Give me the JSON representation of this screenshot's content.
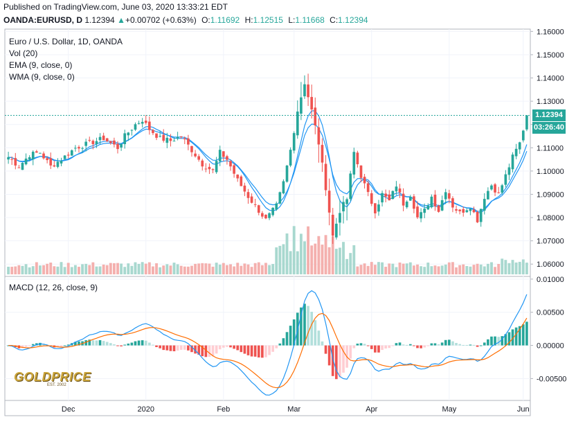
{
  "header": {
    "published": "Published on TradingView.com, June 03, 2020 13:33:21 EDT",
    "symbol": "OANDA:EURUSD, D",
    "last": "1.12394",
    "change_arrow": "▲",
    "change": "+0.00702 (+0.63%)",
    "open_label": "O:",
    "open": "1.11692",
    "high_label": "H:",
    "high": "1.12515",
    "low_label": "L:",
    "low": "1.11668",
    "close_label": "C:",
    "close": "1.12394"
  },
  "legend": {
    "title": "Euro / U.S. Dollar, 1D, OANDA",
    "vol": "Vol (20)",
    "ema": "EMA (9, close, 0)",
    "wma": "WMA (9, close, 0)",
    "macd": "MACD (12, 26, close, 9)"
  },
  "price_tags": {
    "last": "1.12394",
    "countdown": "03:26:40"
  },
  "logo": {
    "name": "GOLDPRICE",
    "est": "EST. 2002"
  },
  "colors": {
    "up": "#26a69a",
    "down": "#ef5350",
    "vol_up": "#a8d8cf",
    "vol_down": "#f4b0ae",
    "ema": "#2196f3",
    "wma": "#2196f3",
    "macd_line": "#2196f3",
    "signal_line": "#ff6d00",
    "hist_up_strong": "#26a69a",
    "hist_up_weak": "#b2dfdb",
    "hist_down_strong": "#ef5350",
    "hist_down_weak": "#ffcdd2"
  },
  "chart_data": [
    {
      "type": "candlestick",
      "title": "Euro / U.S. Dollar, 1D, OANDA",
      "ylim": [
        1.055,
        1.161
      ],
      "y_ticks": [
        1.06,
        1.07,
        1.08,
        1.09,
        1.1,
        1.11,
        1.12,
        1.13,
        1.14,
        1.15,
        1.16
      ],
      "y_tick_labels": [
        "1.06000",
        "1.07000",
        "1.08000",
        "1.09000",
        "1.10000",
        "1.11000",
        "1.12000",
        "1.13000",
        "1.14000",
        "1.15000",
        "1.16000"
      ],
      "x_tick_labels": [
        {
          "label": "Dec",
          "bar": 17
        },
        {
          "label": "2020",
          "bar": 39
        },
        {
          "label": "Feb",
          "bar": 61
        },
        {
          "label": "Mar",
          "bar": 81
        },
        {
          "label": "Apr",
          "bar": 103
        },
        {
          "label": "May",
          "bar": 125
        },
        {
          "label": "Jun",
          "bar": 146
        }
      ],
      "last_price": 1.12394,
      "anchors": [
        [
          0,
          1.106
        ],
        [
          3,
          1.102
        ],
        [
          6,
          1.107
        ],
        [
          9,
          1.108
        ],
        [
          12,
          1.102
        ],
        [
          15,
          1.105
        ],
        [
          19,
          1.11
        ],
        [
          23,
          1.112
        ],
        [
          27,
          1.114
        ],
        [
          31,
          1.11
        ],
        [
          33,
          1.115
        ],
        [
          36,
          1.12
        ],
        [
          38,
          1.122
        ],
        [
          40,
          1.118
        ],
        [
          43,
          1.114
        ],
        [
          46,
          1.113
        ],
        [
          49,
          1.115
        ],
        [
          52,
          1.109
        ],
        [
          55,
          1.103
        ],
        [
          58,
          1.1
        ],
        [
          60,
          1.108
        ],
        [
          62,
          1.105
        ],
        [
          65,
          1.096
        ],
        [
          68,
          1.089
        ],
        [
          71,
          1.083
        ],
        [
          73,
          1.079
        ],
        [
          76,
          1.085
        ],
        [
          78,
          1.095
        ],
        [
          80,
          1.109
        ],
        [
          82,
          1.126
        ],
        [
          84,
          1.138
        ],
        [
          86,
          1.126
        ],
        [
          88,
          1.112
        ],
        [
          90,
          1.093
        ],
        [
          92,
          1.072
        ],
        [
          94,
          1.083
        ],
        [
          96,
          1.088
        ],
        [
          98,
          1.108
        ],
        [
          100,
          1.098
        ],
        [
          102,
          1.09
        ],
        [
          104,
          1.083
        ],
        [
          106,
          1.09
        ],
        [
          108,
          1.087
        ],
        [
          110,
          1.094
        ],
        [
          112,
          1.086
        ],
        [
          114,
          1.09
        ],
        [
          116,
          1.08
        ],
        [
          118,
          1.083
        ],
        [
          120,
          1.089
        ],
        [
          122,
          1.083
        ],
        [
          124,
          1.092
        ],
        [
          126,
          1.085
        ],
        [
          128,
          1.082
        ],
        [
          131,
          1.085
        ],
        [
          133,
          1.079
        ],
        [
          135,
          1.089
        ],
        [
          137,
          1.094
        ],
        [
          139,
          1.09
        ],
        [
          141,
          1.098
        ],
        [
          143,
          1.106
        ],
        [
          145,
          1.112
        ],
        [
          147,
          1.1239
        ]
      ]
    },
    {
      "type": "bar",
      "title": "Vol (20)",
      "note": "relative daily volume, unscaled pane"
    },
    {
      "type": "macd",
      "title": "MACD (12, 26, close, 9)",
      "ylim": [
        -0.0083,
        0.0103
      ],
      "y_ticks": [
        -0.005,
        0.0,
        0.005,
        0.01
      ],
      "y_tick_labels": [
        "-0.00500",
        "0.00000",
        "0.00500",
        "0.01000"
      ]
    }
  ]
}
